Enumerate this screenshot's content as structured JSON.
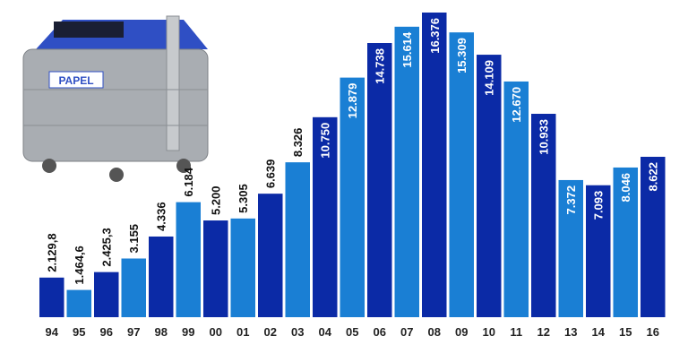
{
  "chart_data": {
    "type": "bar",
    "categories": [
      "94",
      "95",
      "96",
      "97",
      "98",
      "99",
      "00",
      "01",
      "02",
      "03",
      "04",
      "05",
      "06",
      "07",
      "08",
      "09",
      "10",
      "11",
      "12",
      "13",
      "14",
      "15",
      "16"
    ],
    "values": [
      2129.8,
      1464.6,
      2425.3,
      3155,
      4336,
      6184,
      5200,
      5305,
      6639,
      8326,
      10750,
      12879,
      14738,
      15614,
      16376,
      15309,
      14109,
      12670,
      10933,
      7372,
      7093,
      8046,
      8622
    ],
    "value_labels": [
      "2.129,8",
      "1.464,6",
      "2.425,3",
      "3.155",
      "4.336",
      "6.184",
      "5.200",
      "5.305",
      "6.639",
      "8.326",
      "10.750",
      "12.879",
      "14.738",
      "15.614",
      "16.376",
      "15.309",
      "14.109",
      "12.670",
      "10.933",
      "7.372",
      "7.093",
      "8.046",
      "8.622"
    ],
    "colors": [
      "#0b2aa6",
      "#1a7fd4"
    ],
    "image_text": "PAPEL"
  }
}
